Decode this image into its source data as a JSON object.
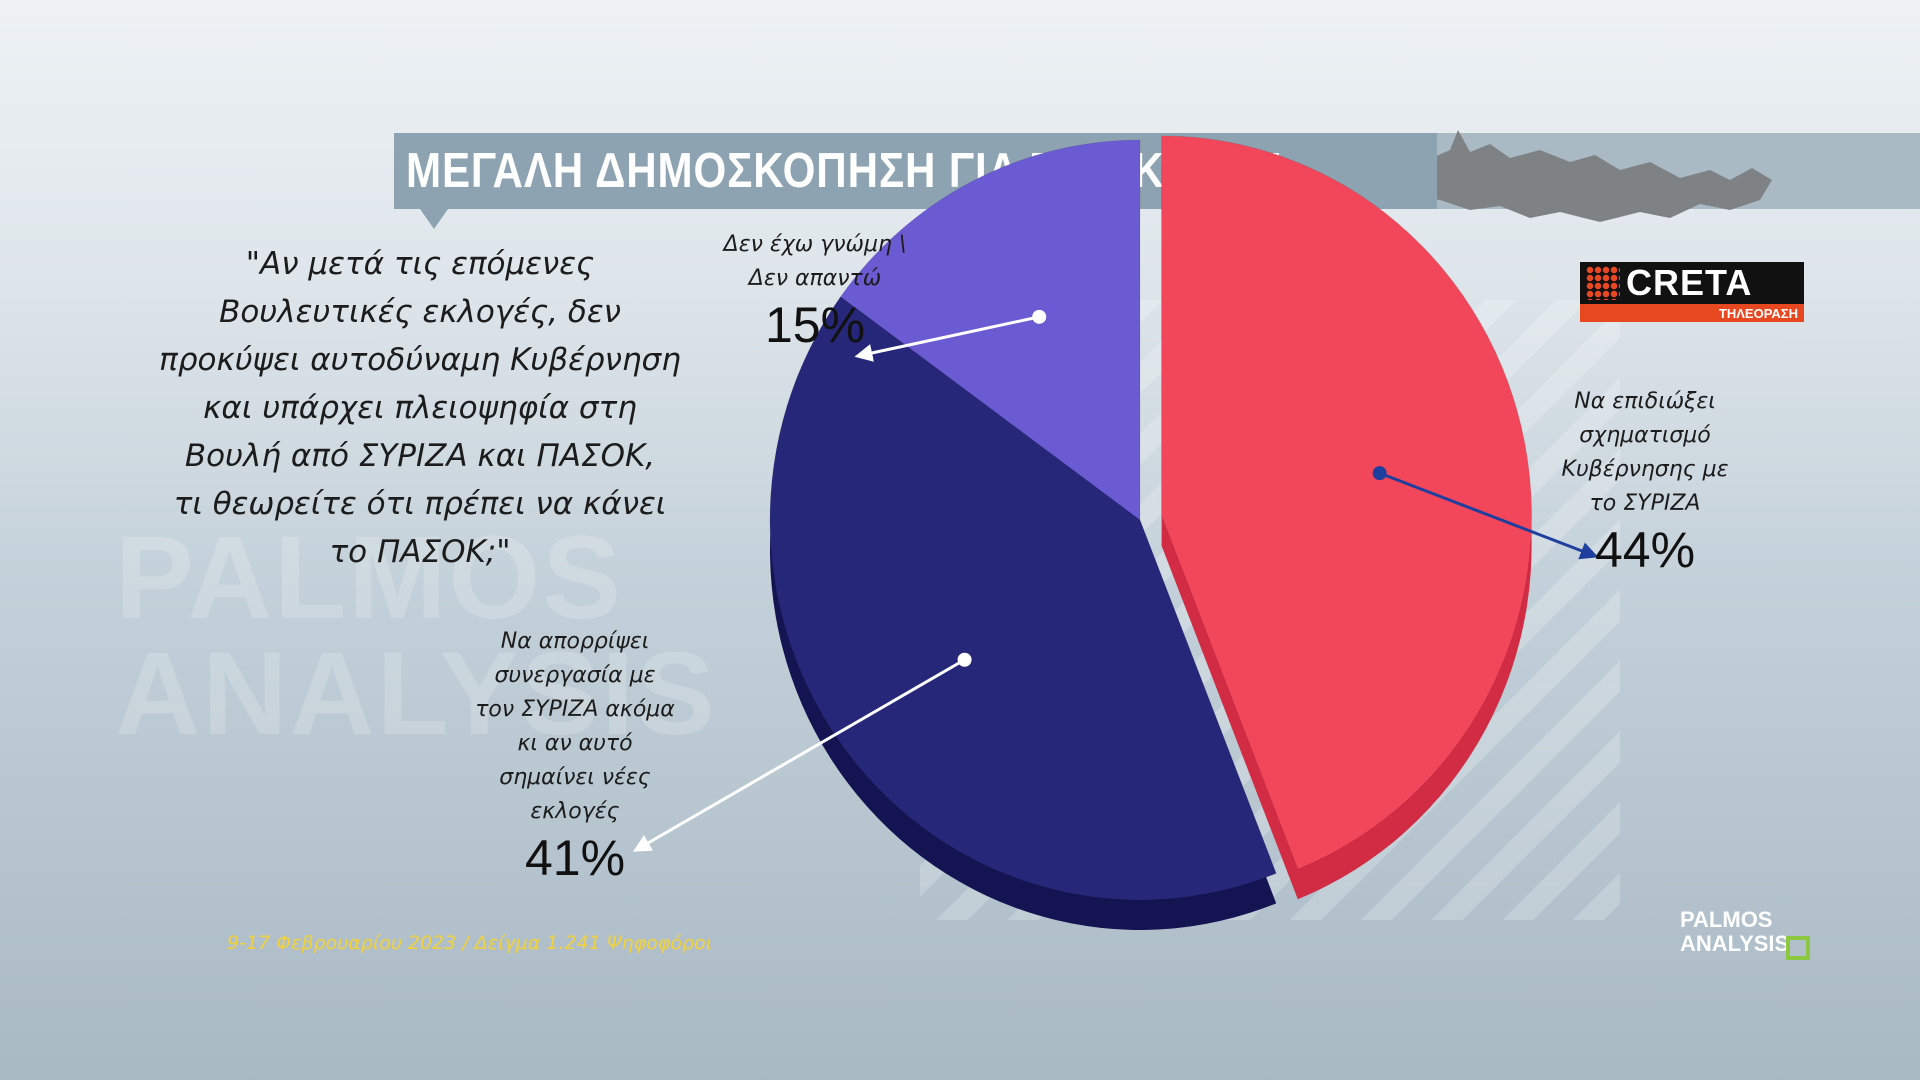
{
  "title": "ΜΕΓΑΛΗ ΔΗΜΟΣΚΟΠΗΣΗ ΓΙΑ ΤΗΝ ΚΡΗΤΗ",
  "logo": {
    "main": "CRETA",
    "sub": "ΤΗΛΕΟΡΑΣΗ"
  },
  "question_lines": [
    "\"Αν μετά τις επόμενες",
    "Βουλευτικές εκλογές, δεν",
    "προκύψει αυτοδύναμη Κυβέρνηση",
    "και υπάρχει πλειοψηφία στη",
    "Βουλή από ΣΥΡΙΖΑ και ΠΑΣΟΚ,",
    "τι θεωρείτε ότι πρέπει να κάνει",
    "το ΠΑΣΟΚ;\""
  ],
  "footnote": "9-17 Φεβρουαρίου 2023 / Δείγμα 1.241 Ψηφοφόροι",
  "brand": {
    "line1": "PALMOS",
    "line2": "ANALYSIS"
  },
  "watermark": {
    "line1": "PALMOS",
    "line2": "ANALYSIS"
  },
  "chart_data": {
    "type": "pie",
    "title": "",
    "slices": [
      {
        "label_lines": [
          "Να επιδιώξει",
          "σχηματισμό",
          "Κυβέρνησης με",
          "το ΣΥΡΙΖΑ"
        ],
        "value": 44,
        "display": "44%",
        "color": "#f2465b",
        "side": "#d22b44",
        "exploded": true,
        "arrow_color": "#1f3f9e"
      },
      {
        "label_lines": [
          "Να απορρίψει",
          "συνεργασία με",
          "τον ΣΥΡΙΖΑ ακόμα",
          "κι αν αυτό",
          "σημαίνει νέες",
          "εκλογές"
        ],
        "value": 41,
        "display": "41%",
        "color": "#27277a",
        "side": "#141452",
        "exploded": false,
        "arrow_color": "#ffffff"
      },
      {
        "label_lines": [
          "Δεν έχω γνώμη \\",
          "Δεν απαντώ"
        ],
        "value": 15,
        "display": "15%",
        "color": "#6b5bd3",
        "side": "#4a3caf",
        "exploded": false,
        "arrow_color": "#ffffff"
      }
    ]
  }
}
